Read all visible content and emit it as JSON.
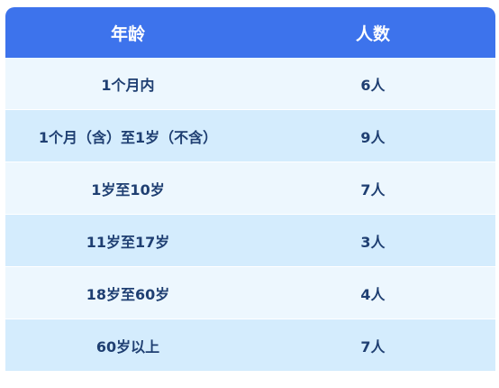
{
  "table": {
    "headers": [
      "年龄",
      "人数"
    ],
    "rows": [
      {
        "age": "1个月内",
        "count": "6人"
      },
      {
        "age": "1个月（含）至1岁（不含）",
        "count": "9人"
      },
      {
        "age": "1岁至10岁",
        "count": "7人"
      },
      {
        "age": "11岁至17岁",
        "count": "3人"
      },
      {
        "age": "18岁至60岁",
        "count": "4人"
      },
      {
        "age": "60岁以上",
        "count": "7人"
      }
    ]
  },
  "colors": {
    "header_bg": "#3d73ec",
    "row_light": "#edf7fe",
    "row_dark": "#d4ecfd",
    "text": "#1f3f72"
  }
}
